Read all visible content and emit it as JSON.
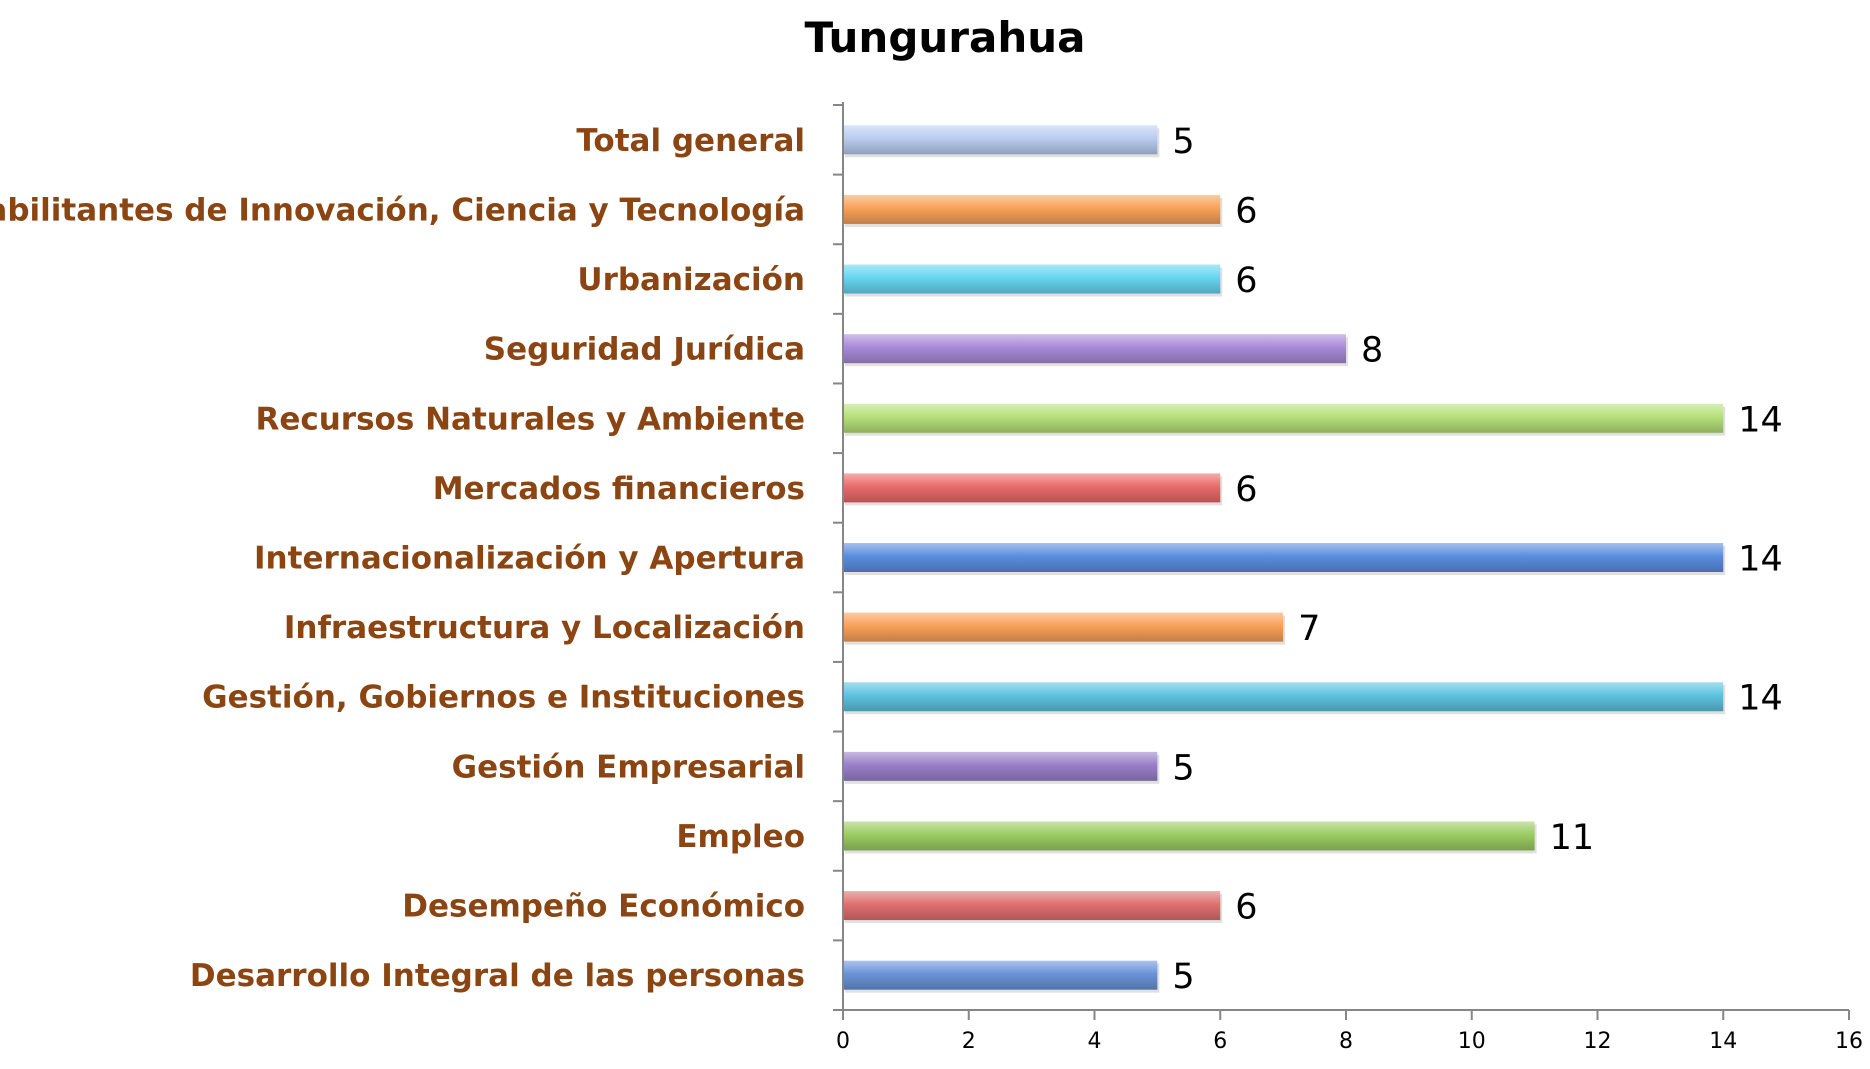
{
  "chart_data": {
    "type": "bar",
    "orientation": "horizontal",
    "title": "Tungurahua",
    "categories": [
      "Total general",
      "Habilitantes de Innovación, Ciencia y Tecnología",
      "Urbanización",
      "Seguridad Jurídica",
      "Recursos Naturales y Ambiente",
      "Mercados financieros",
      "Internacionalización y Apertura",
      "Infraestructura y Localización",
      "Gestión, Gobiernos e Instituciones",
      "Gestión Empresarial",
      "Empleo",
      "Desempeño Económico",
      "Desarrollo Integral de las personas"
    ],
    "values": [
      5,
      6,
      6,
      8,
      14,
      6,
      14,
      7,
      14,
      5,
      11,
      6,
      5
    ],
    "bar_colors": [
      "#b9cdf0",
      "#f9a15a",
      "#66d6f0",
      "#a98ad8",
      "#b6e07a",
      "#e96a6a",
      "#5b8ee0",
      "#f9a15a",
      "#5cc3e0",
      "#9a80c8",
      "#9ccc63",
      "#e07070",
      "#6a93d8"
    ],
    "xlim": [
      0,
      16
    ],
    "xticks": [
      "0",
      "2",
      "4",
      "6",
      "8",
      "10",
      "12",
      "14",
      "16"
    ],
    "xlabel": "",
    "ylabel": "",
    "grid": false,
    "legend": "none",
    "label_color": "#8b4512",
    "axis_color": "#868686"
  }
}
